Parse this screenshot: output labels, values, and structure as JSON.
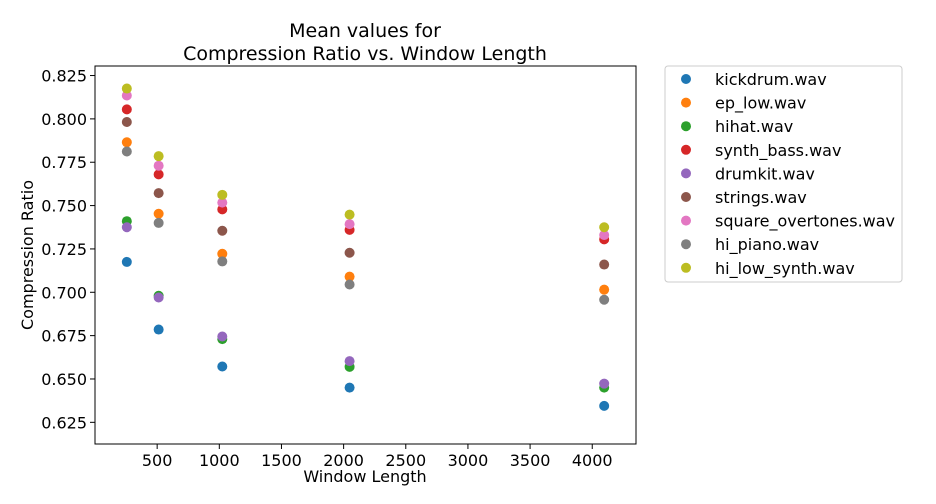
{
  "chart_data": {
    "type": "scatter",
    "title": [
      "Mean values for",
      "Compression Ratio vs. Window Length"
    ],
    "xlabel": "Window Length",
    "ylabel": "Compression Ratio",
    "xlim": [
      0,
      4352
    ],
    "ylim": [
      0.6125,
      0.8305
    ],
    "xticks": [
      500,
      1000,
      1500,
      2000,
      2500,
      3000,
      3500,
      4000
    ],
    "yticks": [
      0.625,
      0.65,
      0.675,
      0.7,
      0.725,
      0.75,
      0.775,
      0.8,
      0.825
    ],
    "xtick_labels": [
      "500",
      "1000",
      "1500",
      "2000",
      "2500",
      "3000",
      "3500",
      "4000"
    ],
    "ytick_labels": [
      "0.625",
      "0.650",
      "0.675",
      "0.700",
      "0.725",
      "0.750",
      "0.775",
      "0.800",
      "0.825"
    ],
    "grid": false,
    "legend_position": "outside-right",
    "x": [
      256,
      512,
      1024,
      2048,
      4096
    ],
    "series": [
      {
        "name": "kickdrum.wav",
        "color": "#1f77b4",
        "values": [
          0.7175,
          0.6785,
          0.6572,
          0.645,
          0.6345
        ]
      },
      {
        "name": "ep_low.wav",
        "color": "#ff7f0e",
        "values": [
          0.7865,
          0.7453,
          0.7222,
          0.709,
          0.7015
        ]
      },
      {
        "name": "hihat.wav",
        "color": "#2ca02c",
        "values": [
          0.741,
          0.698,
          0.673,
          0.657,
          0.645
        ]
      },
      {
        "name": "synth_bass.wav",
        "color": "#d62728",
        "values": [
          0.8055,
          0.768,
          0.7478,
          0.736,
          0.7305
        ]
      },
      {
        "name": "drumkit.wav",
        "color": "#9467bd",
        "values": [
          0.7375,
          0.697,
          0.6745,
          0.6603,
          0.6473
        ]
      },
      {
        "name": "strings.wav",
        "color": "#8c564b",
        "values": [
          0.7982,
          0.7572,
          0.7355,
          0.7228,
          0.716
        ]
      },
      {
        "name": "square_overtones.wav",
        "color": "#e377c2",
        "values": [
          0.8135,
          0.773,
          0.7517,
          0.7393,
          0.733
        ]
      },
      {
        "name": "hi_piano.wav",
        "color": "#7f7f7f",
        "values": [
          0.7812,
          0.74,
          0.7178,
          0.7045,
          0.6957
        ]
      },
      {
        "name": "hi_low_synth.wav",
        "color": "#bcbd22",
        "values": [
          0.8175,
          0.7785,
          0.7562,
          0.7448,
          0.7375
        ]
      }
    ]
  }
}
